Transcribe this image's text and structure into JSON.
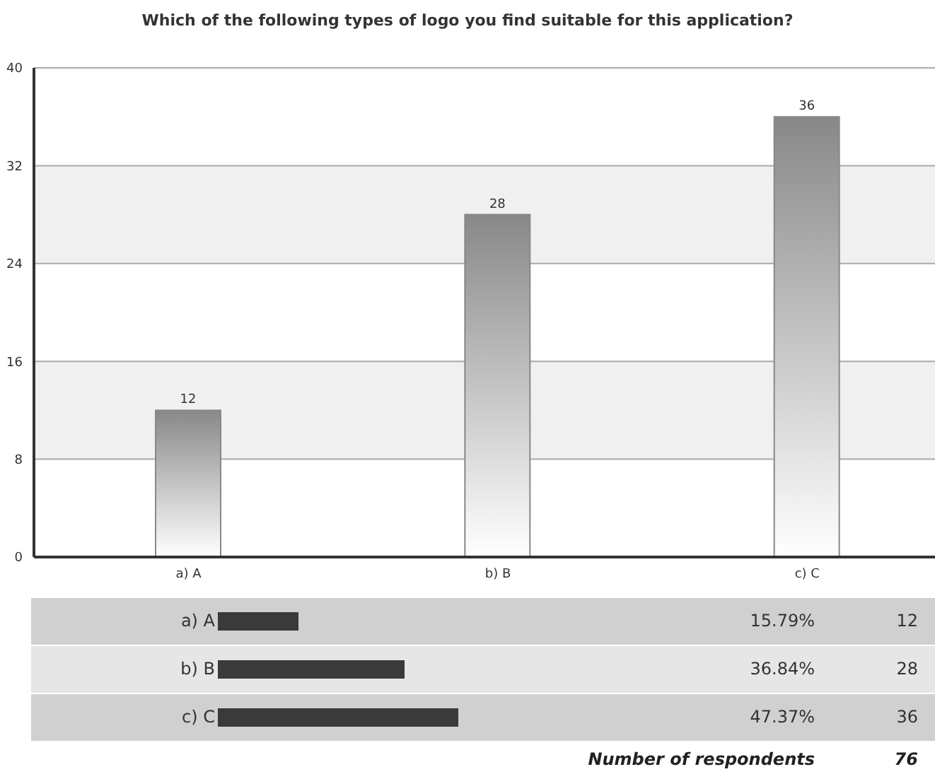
{
  "chart_data": {
    "type": "bar",
    "title": "Which of the following types of logo you find suitable for this application?",
    "categories": [
      "a) A",
      "b) B",
      "c) C"
    ],
    "values": [
      12,
      28,
      36
    ],
    "color": "#888888",
    "ylim": [
      0,
      40
    ],
    "yticks": [
      0,
      8,
      16,
      24,
      32,
      40
    ],
    "grid": "y",
    "data_labels": true,
    "annotations": [
      "15.79%",
      "12",
      "36.84%",
      "28",
      "47.37%",
      "36",
      "Number of respondents",
      "76"
    ]
  }
}
